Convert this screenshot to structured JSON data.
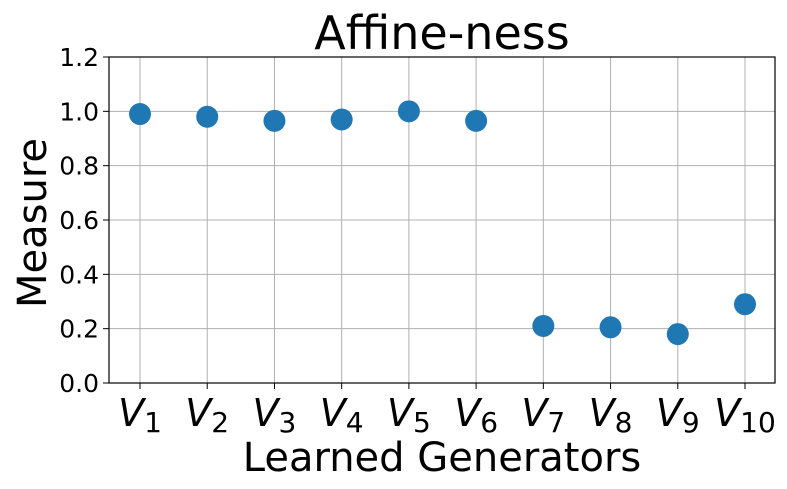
{
  "chart_data": {
    "type": "scatter",
    "title": "Affine-ness",
    "xlabel": "Learned Generators",
    "ylabel": "Measure",
    "ylim": [
      0.0,
      1.2
    ],
    "grid": true,
    "marker_color": "#1f77b4",
    "categories": [
      {
        "base": "V",
        "sub": "1"
      },
      {
        "base": "V",
        "sub": "2"
      },
      {
        "base": "V",
        "sub": "3"
      },
      {
        "base": "V",
        "sub": "4"
      },
      {
        "base": "V",
        "sub": "5"
      },
      {
        "base": "V",
        "sub": "6"
      },
      {
        "base": "V",
        "sub": "7"
      },
      {
        "base": "V",
        "sub": "8"
      },
      {
        "base": "V",
        "sub": "9"
      },
      {
        "base": "V",
        "sub": "10"
      }
    ],
    "values": [
      0.99,
      0.98,
      0.965,
      0.97,
      1.0,
      0.965,
      0.21,
      0.205,
      0.18,
      0.29
    ],
    "yticks": [
      "0.0",
      "0.2",
      "0.4",
      "0.6",
      "0.8",
      "1.0",
      "1.2"
    ]
  }
}
